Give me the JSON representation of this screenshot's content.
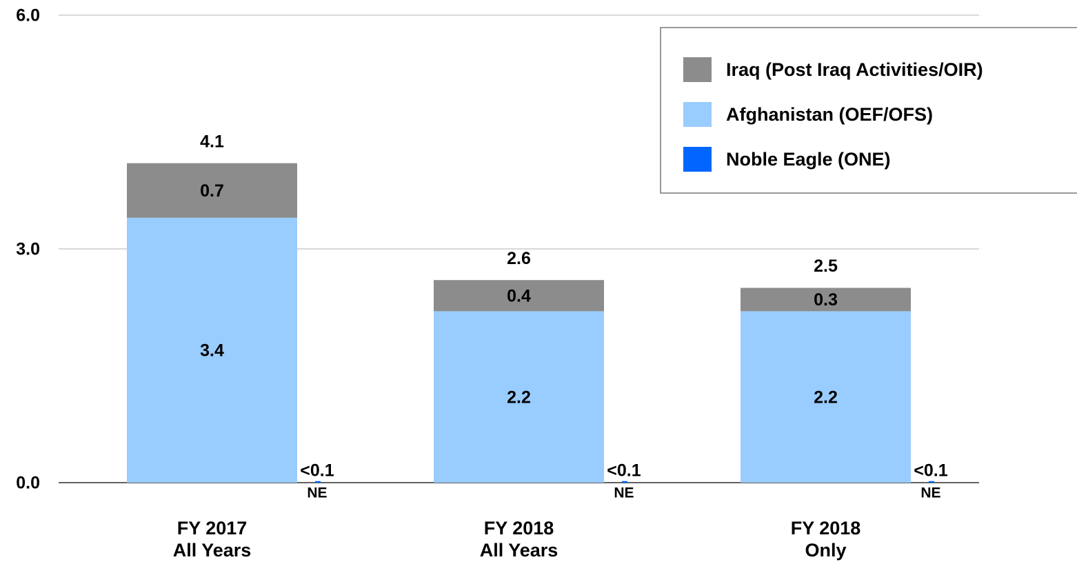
{
  "chart_data": {
    "type": "bar",
    "categories": [
      [
        "FY 2017",
        "All Years"
      ],
      [
        "FY 2018",
        "All Years"
      ],
      [
        "FY 2018",
        "Only"
      ]
    ],
    "series": [
      {
        "name": "Iraq (Post Iraq Activities/OIR)",
        "color": "#8c8c8c",
        "values": [
          0.7,
          0.4,
          0.3
        ]
      },
      {
        "name": "Afghanistan (OEF/OFS)",
        "color": "#99ccff",
        "values": [
          3.4,
          2.2,
          2.2
        ]
      },
      {
        "name": "Noble Eagle (ONE)",
        "short_name": "NE",
        "color": "#0066ff",
        "values": [
          0.02,
          0.02,
          0.02
        ],
        "value_labels": [
          "<0.1",
          "<0.1",
          "<0.1"
        ]
      }
    ],
    "totals": [
      4.1,
      2.6,
      2.5
    ],
    "ylim": [
      0,
      6
    ],
    "yticks": [
      {
        "value": 0,
        "label": "0.0"
      },
      {
        "value": 3,
        "label": "3.0"
      },
      {
        "value": 6,
        "label": "6.0"
      }
    ],
    "grid": true,
    "legend": "upper right"
  }
}
